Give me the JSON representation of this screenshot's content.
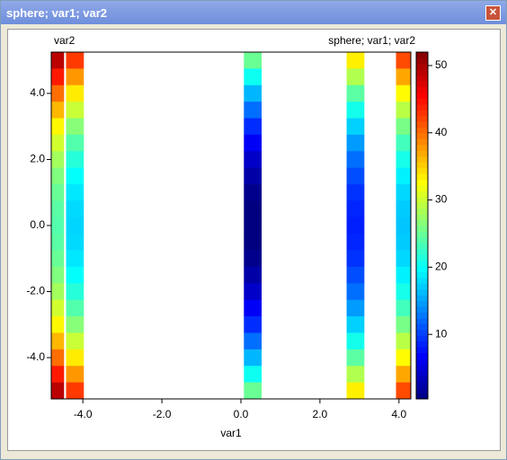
{
  "window": {
    "title": "sphere; var1; var2"
  },
  "chart_data": {
    "type": "heatmap",
    "title": "sphere; var1; var2",
    "x_label": "var1",
    "y_label": "var2",
    "colormap": "jet",
    "xlim": [
      -4.8,
      4.3
    ],
    "xticks": [
      {
        "value": -4,
        "label": "-4.0"
      },
      {
        "value": -2,
        "label": "-2.0"
      },
      {
        "value": 0,
        "label": "0.0"
      },
      {
        "value": 2,
        "label": "2.0"
      },
      {
        "value": 4,
        "label": "4.0"
      }
    ],
    "ylim": [
      -5.25,
      5.25
    ],
    "yticks": [
      {
        "value": 4,
        "label": "4.0"
      },
      {
        "value": 2,
        "label": "2.0"
      },
      {
        "value": 0,
        "label": "0.0"
      },
      {
        "value": -2,
        "label": "-2.0"
      },
      {
        "value": -4,
        "label": "-4.0"
      }
    ],
    "clim": [
      0.4,
      52
    ],
    "cticks": [
      10,
      20,
      30,
      40,
      50
    ],
    "y": [
      5,
      4.5,
      4,
      3.5,
      3,
      2.5,
      2,
      1.5,
      1,
      0.5,
      0,
      -0.5,
      -1,
      -1.5,
      -2,
      -2.5,
      -3,
      -3.5,
      -4,
      -4.5,
      -5
    ],
    "columns": [
      {
        "x": -4.7,
        "values": [
          49,
          44.3,
          40,
          36.3,
          33,
          30.3,
          28,
          26.3,
          25,
          24.3,
          24,
          24.3,
          25,
          26.3,
          28,
          30.3,
          33,
          36.3,
          40,
          44.3,
          49
        ]
      },
      {
        "x": -4.2,
        "values": [
          42.6,
          37.9,
          33.6,
          29.9,
          26.6,
          23.9,
          21.6,
          19.9,
          18.6,
          17.9,
          17.6,
          17.9,
          18.6,
          19.9,
          21.6,
          23.9,
          26.6,
          29.9,
          33.6,
          37.9,
          42.6
        ]
      },
      {
        "x": 0.3,
        "values": [
          25.1,
          20.4,
          16.1,
          12.4,
          9.1,
          6.4,
          4.1,
          2.4,
          1.1,
          0.4,
          0.1,
          0.4,
          1.1,
          2.4,
          4.1,
          6.4,
          9.1,
          12.4,
          16.1,
          20.4,
          25.1
        ]
      },
      {
        "x": 2.9,
        "values": [
          33.4,
          28.7,
          24.4,
          20.7,
          17.4,
          14.7,
          12.4,
          10.7,
          9.4,
          8.7,
          8.4,
          8.7,
          9.4,
          10.7,
          12.4,
          14.7,
          17.4,
          20.7,
          24.4,
          28.7,
          33.4
        ]
      },
      {
        "x": 4.15,
        "values": [
          41.8,
          37.1,
          32.8,
          29.1,
          25.8,
          23.1,
          20.8,
          19.1,
          17.8,
          17.1,
          16.8,
          17.1,
          17.8,
          19.1,
          20.8,
          23.1,
          25.8,
          29.1,
          32.8,
          37.1,
          41.8
        ]
      }
    ]
  }
}
